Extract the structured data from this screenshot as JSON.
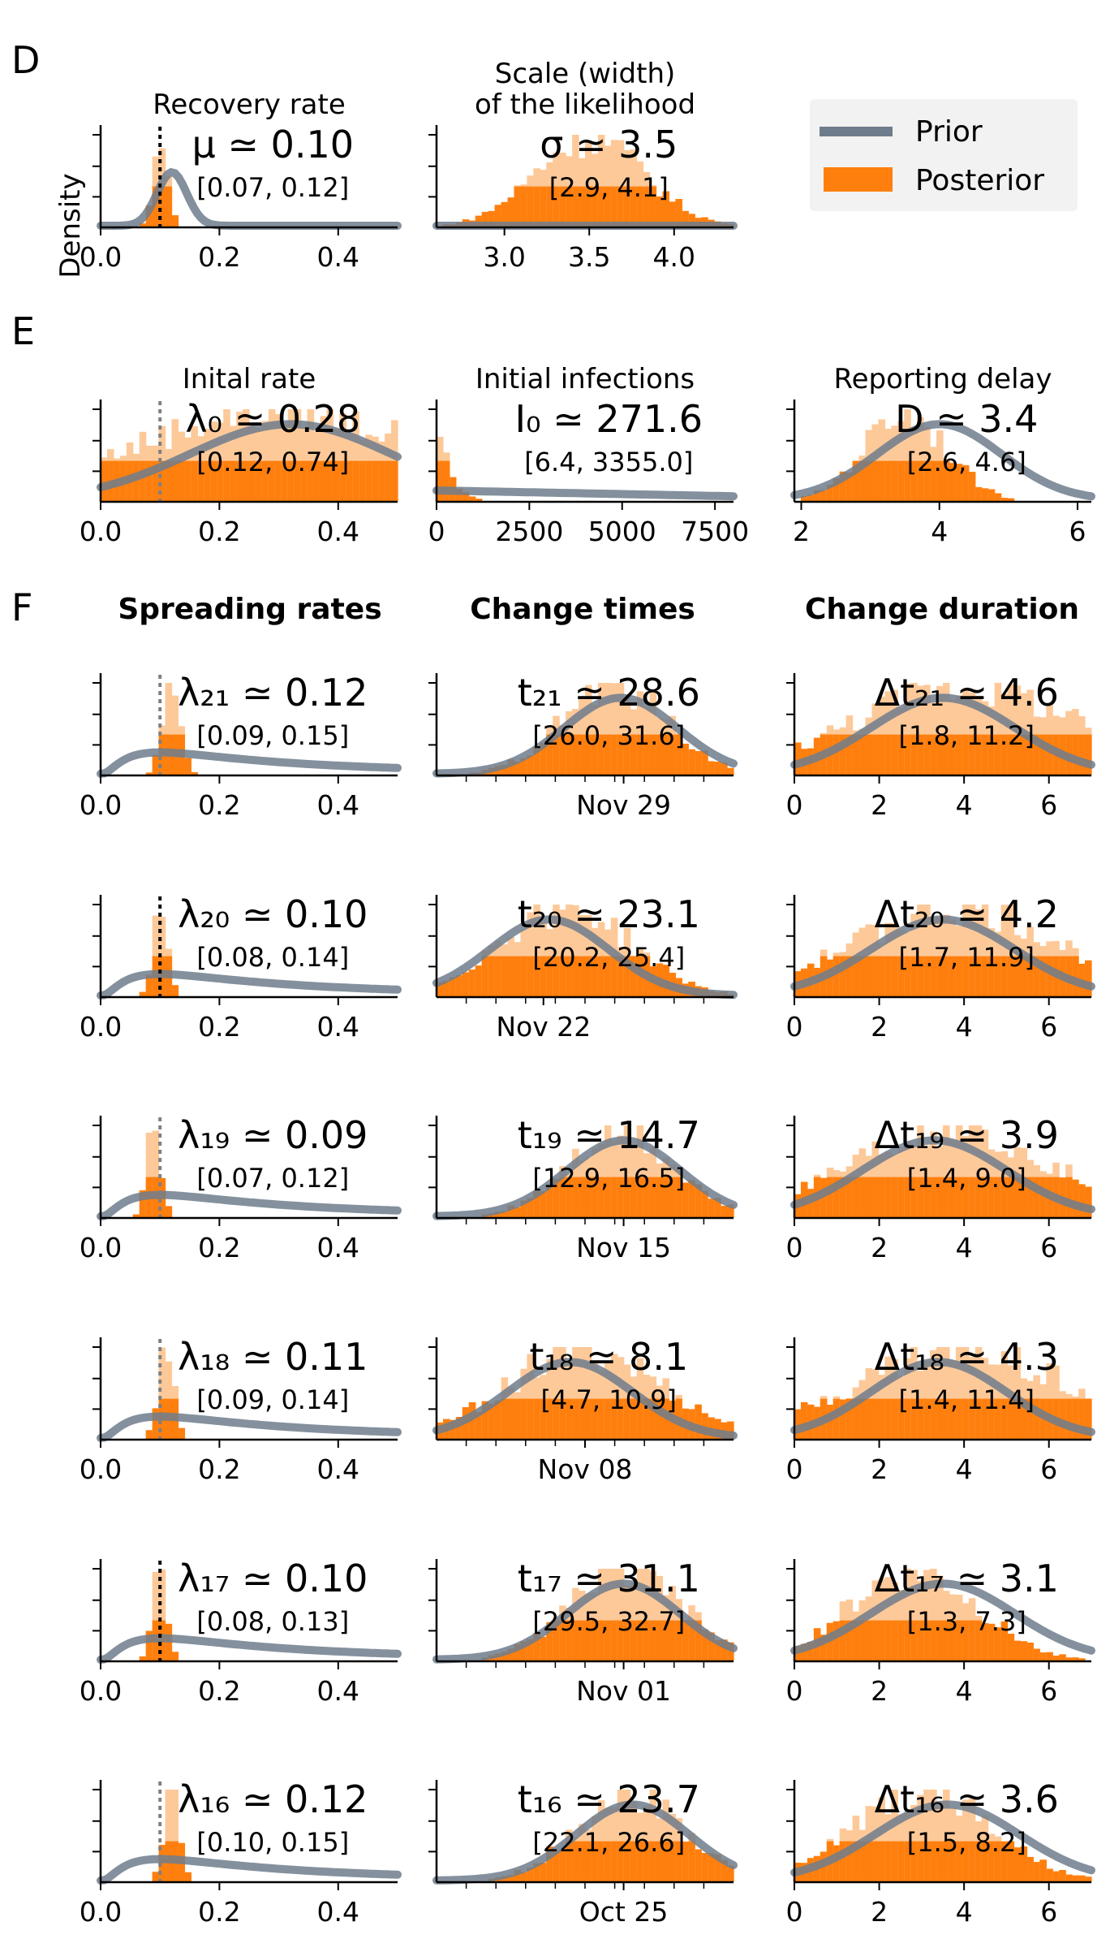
{
  "colors": {
    "prior": "#6f7c8c",
    "posterior": "#ff7f0e",
    "posterior_light": "#fdc999",
    "ref_line_dark": "#000000",
    "ref_line_grey": "#808080"
  },
  "legend": {
    "prior": "Prior",
    "posterior": "Posterior"
  },
  "figure": {
    "sections": [
      {
        "letter": "D"
      },
      {
        "letter": "E"
      },
      {
        "letter": "F",
        "column_headers": [
          "Spreading rates",
          "Change times",
          "Change duration"
        ]
      }
    ],
    "ylabel": "Density"
  },
  "chart_data": [
    {
      "id": "mu",
      "type": "bar",
      "title": "Recovery rate",
      "stat": "μ ≃ 0.10",
      "ci": "[0.07, 0.12]",
      "xlim": [
        0,
        0.5
      ],
      "xticks": [
        "0.0",
        "0.2",
        "0.4"
      ],
      "xtick_values": [
        0,
        0.2,
        0.4
      ],
      "ref_line": 0.1,
      "ref_style": "dark",
      "posterior_center": 0.1,
      "posterior_spread": 0.012,
      "prior_shape": "peak",
      "prior_center": 0.12,
      "prior_width": 0.025
    },
    {
      "id": "sigma",
      "type": "bar",
      "title": "Scale (width)\nof the likelihood",
      "stat": "σ ≃ 3.5",
      "ci": "[2.9, 4.1]",
      "xlim": [
        2.6,
        4.35
      ],
      "xticks": [
        "3.0",
        "3.5",
        "4.0"
      ],
      "xtick_values": [
        3.0,
        3.5,
        4.0
      ],
      "ref_line": null,
      "posterior_center": 3.5,
      "posterior_spread": 0.32,
      "prior_shape": "flat",
      "prior_level": 0.0
    },
    {
      "id": "lambda0",
      "type": "bar",
      "title": "Inital rate",
      "stat": "λ₀ ≃ 0.28",
      "ci": "[0.12, 0.74]",
      "xlim": [
        0,
        0.5
      ],
      "xticks": [
        "0.0",
        "0.2",
        "0.4"
      ],
      "xtick_values": [
        0,
        0.2,
        0.4
      ],
      "ref_line": 0.1,
      "ref_style": "grey",
      "posterior_center": 0.3,
      "posterior_spread": 0.25,
      "prior_shape": "broad",
      "prior_center": 0.32,
      "prior_width": 0.17
    },
    {
      "id": "I0",
      "type": "bar",
      "title": "Initial infections",
      "stat": "I₀ ≃ 271.6",
      "ci": "[6.4, 3355.0]",
      "xlim": [
        0,
        8000
      ],
      "xticks": [
        "0",
        "2500",
        "5000",
        "7500"
      ],
      "xtick_values": [
        0,
        2500,
        5000,
        7500
      ],
      "ref_line": null,
      "posterior_center": 0,
      "posterior_spread": 400,
      "prior_shape": "flat",
      "prior_level": 0.1
    },
    {
      "id": "D",
      "type": "bar",
      "title": "Reporting delay",
      "stat": "D ≃ 3.4",
      "ci": "[2.6, 4.6]",
      "xlim": [
        1.9,
        6.2
      ],
      "xticks": [
        "2",
        "4",
        "6"
      ],
      "xtick_values": [
        2,
        4,
        6
      ],
      "ref_line": null,
      "posterior_center": 3.5,
      "posterior_spread": 0.6,
      "prior_shape": "broad",
      "prior_center": 4.0,
      "prior_width": 0.9
    },
    {
      "id": "lambda21",
      "type": "bar",
      "stat": "λ₂₁ ≃ 0.12",
      "ci": "[0.09, 0.15]",
      "xlim": [
        0,
        0.5
      ],
      "xticks": [
        "0.0",
        "0.2",
        "0.4"
      ],
      "xtick_values": [
        0,
        0.2,
        0.4
      ],
      "ref_line": 0.1,
      "ref_style": "grey",
      "posterior_center": 0.12,
      "posterior_spread": 0.015,
      "prior_shape": "lognormal",
      "prior_center": 0.1,
      "prior_width": 0.18
    },
    {
      "id": "t21",
      "type": "bar",
      "stat": "t₂₁ ≃ 28.6",
      "ci": "[26.0, 31.6]",
      "xlim": [
        0,
        10
      ],
      "xticks": [
        "Nov 29"
      ],
      "xtick_values": [
        6.3
      ],
      "ref_line": null,
      "posterior_center": 6.0,
      "posterior_spread": 1.8,
      "prior_shape": "broad",
      "prior_center": 6.2,
      "prior_width": 1.9
    },
    {
      "id": "dt21",
      "type": "bar",
      "stat": "Δt₂₁ ≃ 4.6",
      "ci": "[1.8, 11.2]",
      "xlim": [
        0,
        7
      ],
      "xticks": [
        "0",
        "2",
        "4",
        "6"
      ],
      "xtick_values": [
        0,
        2,
        4,
        6
      ],
      "ref_line": null,
      "posterior_center": 4.0,
      "posterior_spread": 2.6,
      "prior_shape": "broad",
      "prior_center": 3.5,
      "prior_width": 1.7
    },
    {
      "id": "lambda20",
      "type": "bar",
      "stat": "λ₂₀ ≃ 0.10",
      "ci": "[0.08, 0.14]",
      "xlim": [
        0,
        0.5
      ],
      "xticks": [
        "0.0",
        "0.2",
        "0.4"
      ],
      "xtick_values": [
        0,
        0.2,
        0.4
      ],
      "ref_line": 0.1,
      "ref_style": "dark",
      "posterior_center": 0.1,
      "posterior_spread": 0.012,
      "prior_shape": "lognormal",
      "prior_center": 0.1,
      "prior_width": 0.18
    },
    {
      "id": "t20",
      "type": "bar",
      "stat": "t₂₀ ≃ 23.1",
      "ci": "[20.2, 25.4]",
      "xlim": [
        0,
        10
      ],
      "xticks": [
        "Nov 22"
      ],
      "xtick_values": [
        3.6
      ],
      "ref_line": null,
      "posterior_center": 4.3,
      "posterior_spread": 2.2,
      "prior_shape": "broad",
      "prior_center": 3.8,
      "prior_width": 2.0
    },
    {
      "id": "dt20",
      "type": "bar",
      "stat": "Δt₂₀ ≃ 4.2",
      "ci": "[1.7, 11.9]",
      "xlim": [
        0,
        7
      ],
      "xticks": [
        "0",
        "2",
        "4",
        "6"
      ],
      "xtick_values": [
        0,
        2,
        4,
        6
      ],
      "ref_line": null,
      "posterior_center": 3.8,
      "posterior_spread": 2.4,
      "prior_shape": "broad",
      "prior_center": 3.5,
      "prior_width": 1.7
    },
    {
      "id": "lambda19",
      "type": "bar",
      "stat": "λ₁₉ ≃ 0.09",
      "ci": "[0.07, 0.12]",
      "xlim": [
        0,
        0.5
      ],
      "xticks": [
        "0.0",
        "0.2",
        "0.4"
      ],
      "xtick_values": [
        0,
        0.2,
        0.4
      ],
      "ref_line": 0.1,
      "ref_style": "grey",
      "posterior_center": 0.09,
      "posterior_spread": 0.012,
      "prior_shape": "lognormal",
      "prior_center": 0.1,
      "prior_width": 0.18
    },
    {
      "id": "t19",
      "type": "bar",
      "stat": "t₁₉ ≃ 14.7",
      "ci": "[12.9, 16.5]",
      "xlim": [
        0,
        10
      ],
      "xticks": [
        "Nov 15"
      ],
      "xtick_values": [
        6.3
      ],
      "ref_line": null,
      "posterior_center": 6.2,
      "posterior_spread": 1.8,
      "prior_shape": "broad",
      "prior_center": 6.3,
      "prior_width": 1.9
    },
    {
      "id": "dt19",
      "type": "bar",
      "stat": "Δt₁₉ ≃ 3.9",
      "ci": "[1.4, 9.0]",
      "xlim": [
        0,
        7
      ],
      "xticks": [
        "0",
        "2",
        "4",
        "6"
      ],
      "xtick_values": [
        0,
        2,
        4,
        6
      ],
      "ref_line": null,
      "posterior_center": 3.6,
      "posterior_spread": 2.4,
      "prior_shape": "broad",
      "prior_center": 3.3,
      "prior_width": 1.7
    },
    {
      "id": "lambda18",
      "type": "bar",
      "stat": "λ₁₈ ≃ 0.11",
      "ci": "[0.09, 0.14]",
      "xlim": [
        0,
        0.5
      ],
      "xticks": [
        "0.0",
        "0.2",
        "0.4"
      ],
      "xtick_values": [
        0,
        0.2,
        0.4
      ],
      "ref_line": 0.1,
      "ref_style": "grey",
      "posterior_center": 0.11,
      "posterior_spread": 0.013,
      "prior_shape": "lognormal",
      "prior_center": 0.1,
      "prior_width": 0.18
    },
    {
      "id": "t18",
      "type": "bar",
      "stat": "t₁₈ ≃ 8.1",
      "ci": "[4.7, 10.9]",
      "xlim": [
        0,
        10
      ],
      "xticks": [
        "Nov 08"
      ],
      "xtick_values": [
        5.0
      ],
      "ref_line": null,
      "posterior_center": 5.0,
      "posterior_spread": 2.6,
      "prior_shape": "broad",
      "prior_center": 4.5,
      "prior_width": 2.1
    },
    {
      "id": "dt18",
      "type": "bar",
      "stat": "Δt₁₈ ≃ 4.3",
      "ci": "[1.4, 11.4]",
      "xlim": [
        0,
        7
      ],
      "xticks": [
        "0",
        "2",
        "4",
        "6"
      ],
      "xtick_values": [
        0,
        2,
        4,
        6
      ],
      "ref_line": null,
      "posterior_center": 4.0,
      "posterior_spread": 2.6,
      "prior_shape": "broad",
      "prior_center": 3.4,
      "prior_width": 1.6
    },
    {
      "id": "lambda17",
      "type": "bar",
      "stat": "λ₁₇ ≃ 0.10",
      "ci": "[0.08, 0.13]",
      "xlim": [
        0,
        0.5
      ],
      "xticks": [
        "0.0",
        "0.2",
        "0.4"
      ],
      "xtick_values": [
        0,
        0.2,
        0.4
      ],
      "ref_line": 0.1,
      "ref_style": "dark",
      "posterior_center": 0.1,
      "posterior_spread": 0.012,
      "prior_shape": "lognormal",
      "prior_center": 0.1,
      "prior_width": 0.18
    },
    {
      "id": "t17",
      "type": "bar",
      "stat": "t₁₇ ≃ 31.1",
      "ci": "[29.5, 32.7]",
      "xlim": [
        0,
        10
      ],
      "xticks": [
        "Nov 01"
      ],
      "xtick_values": [
        6.3
      ],
      "ref_line": null,
      "posterior_center": 6.4,
      "posterior_spread": 1.9,
      "prior_shape": "broad",
      "prior_center": 6.3,
      "prior_width": 1.9
    },
    {
      "id": "dt17",
      "type": "bar",
      "stat": "Δt₁₇ ≃ 3.1",
      "ci": "[1.3, 7.3]",
      "xlim": [
        0,
        7
      ],
      "xticks": [
        "0",
        "2",
        "4",
        "6"
      ],
      "xtick_values": [
        0,
        2,
        4,
        6
      ],
      "ref_line": null,
      "posterior_center": 2.8,
      "posterior_spread": 1.5,
      "prior_shape": "broad",
      "prior_center": 3.5,
      "prior_width": 1.7
    },
    {
      "id": "lambda16",
      "type": "bar",
      "stat": "λ₁₆ ≃ 0.12",
      "ci": "[0.10, 0.15]",
      "xlim": [
        0,
        0.5
      ],
      "xticks": [
        "0.0",
        "0.2",
        "0.4"
      ],
      "xtick_values": [
        0,
        0.2,
        0.4
      ],
      "ref_line": 0.1,
      "ref_style": "grey",
      "posterior_center": 0.12,
      "posterior_spread": 0.013,
      "prior_shape": "lognormal",
      "prior_center": 0.1,
      "prior_width": 0.18
    },
    {
      "id": "t16",
      "type": "bar",
      "stat": "t₁₆ ≃ 23.7",
      "ci": "[22.1, 26.6]",
      "xlim": [
        0,
        10
      ],
      "xticks": [
        "Oct 25"
      ],
      "xtick_values": [
        6.3
      ],
      "ref_line": null,
      "posterior_center": 6.5,
      "posterior_spread": 1.8,
      "prior_shape": "broad",
      "prior_center": 6.6,
      "prior_width": 1.9
    },
    {
      "id": "dt16",
      "type": "bar",
      "stat": "Δt₁₆ ≃ 3.6",
      "ci": "[1.5, 8.2]",
      "xlim": [
        0,
        7
      ],
      "xticks": [
        "0",
        "2",
        "4",
        "6"
      ],
      "xtick_values": [
        0,
        2,
        4,
        6
      ],
      "ref_line": null,
      "posterior_center": 3.0,
      "posterior_spread": 1.6,
      "prior_shape": "broad",
      "prior_center": 3.6,
      "prior_width": 1.7
    }
  ]
}
